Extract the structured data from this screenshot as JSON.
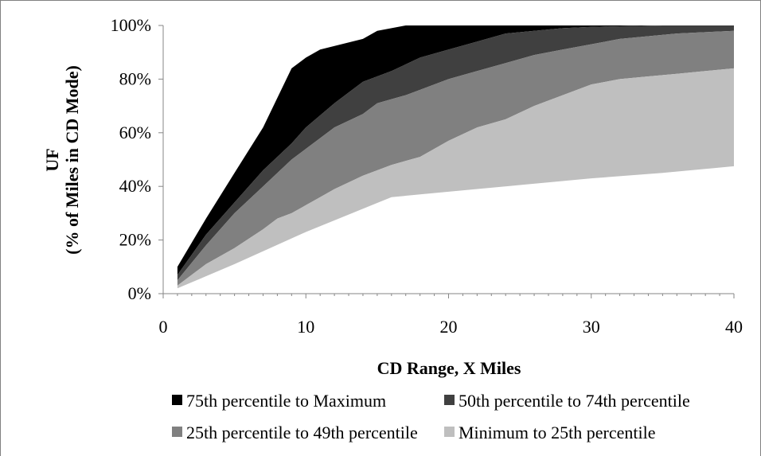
{
  "chart_data": {
    "type": "area",
    "stacked": true,
    "title": "",
    "xlabel": "CD Range, X Miles",
    "ylabel_lines": [
      "UF",
      "(% of Miles in CD Mode)"
    ],
    "xlim": [
      0,
      40
    ],
    "ylim": [
      0,
      100
    ],
    "x_ticks": [
      0,
      10,
      20,
      30,
      40
    ],
    "x_tick_labels": [
      "0",
      "10",
      "20",
      "30",
      "40"
    ],
    "y_ticks": [
      0,
      20,
      40,
      60,
      80,
      100
    ],
    "y_tick_labels": [
      "0%",
      "20%",
      "40%",
      "60%",
      "80%",
      "100%"
    ],
    "grid": false,
    "legend_position": "bottom",
    "boundaries": [
      {
        "name": "Minimum",
        "points": [
          [
            1,
            2
          ],
          [
            5,
            11
          ],
          [
            10,
            23
          ],
          [
            16,
            36
          ],
          [
            20,
            38
          ],
          [
            25,
            40.5
          ],
          [
            30,
            43
          ],
          [
            35,
            45
          ],
          [
            40,
            47.5
          ]
        ]
      },
      {
        "name": "25th percentile",
        "points": [
          [
            1,
            3
          ],
          [
            2,
            7
          ],
          [
            3,
            11
          ],
          [
            5,
            17
          ],
          [
            7,
            24
          ],
          [
            8,
            28
          ],
          [
            9,
            30
          ],
          [
            10,
            33
          ],
          [
            11,
            36
          ],
          [
            12,
            39
          ],
          [
            14,
            44
          ],
          [
            16,
            48
          ],
          [
            18,
            51
          ],
          [
            20,
            57
          ],
          [
            22,
            62
          ],
          [
            24,
            65
          ],
          [
            26,
            70
          ],
          [
            28,
            74
          ],
          [
            30,
            78
          ],
          [
            32,
            80
          ],
          [
            34,
            81
          ],
          [
            36,
            82
          ],
          [
            38,
            83
          ],
          [
            40,
            84
          ]
        ]
      },
      {
        "name": "50th percentile",
        "points": [
          [
            1,
            5
          ],
          [
            3,
            18
          ],
          [
            5,
            30
          ],
          [
            7,
            40
          ],
          [
            9,
            50
          ],
          [
            10,
            54
          ],
          [
            12,
            62
          ],
          [
            14,
            67
          ],
          [
            15,
            71
          ],
          [
            17,
            74
          ],
          [
            18,
            76
          ],
          [
            20,
            80
          ],
          [
            22,
            83
          ],
          [
            24,
            86
          ],
          [
            26,
            89
          ],
          [
            28,
            91
          ],
          [
            30,
            93
          ],
          [
            32,
            95
          ],
          [
            34,
            96
          ],
          [
            36,
            97
          ],
          [
            38,
            97.5
          ],
          [
            40,
            98
          ]
        ]
      },
      {
        "name": "75th percentile",
        "points": [
          [
            1,
            7
          ],
          [
            3,
            22
          ],
          [
            5,
            34
          ],
          [
            7,
            46
          ],
          [
            9,
            56
          ],
          [
            10,
            62
          ],
          [
            12,
            71
          ],
          [
            14,
            79
          ],
          [
            16,
            83
          ],
          [
            18,
            88
          ],
          [
            20,
            91
          ],
          [
            22,
            94
          ],
          [
            24,
            97
          ],
          [
            26,
            98
          ],
          [
            28,
            99
          ],
          [
            30,
            99.5
          ],
          [
            32,
            99.7
          ],
          [
            35,
            100
          ],
          [
            40,
            100
          ]
        ]
      },
      {
        "name": "Maximum",
        "points": [
          [
            1,
            10
          ],
          [
            3,
            28
          ],
          [
            5,
            45
          ],
          [
            7,
            62
          ],
          [
            9,
            84
          ],
          [
            10,
            88
          ],
          [
            11,
            91
          ],
          [
            14,
            95
          ],
          [
            15,
            98
          ],
          [
            17,
            100
          ],
          [
            40,
            100
          ]
        ]
      }
    ],
    "series": [
      {
        "name": "75th percentile to Maximum",
        "lower": 3,
        "upper": 4,
        "color": "#000000"
      },
      {
        "name": "50th percentile to 74th percentile",
        "lower": 2,
        "upper": 3,
        "color": "#404040"
      },
      {
        "name": "25th percentile to 49th percentile",
        "lower": 1,
        "upper": 2,
        "color": "#808080"
      },
      {
        "name": "Minimum to 25th percentile",
        "lower": 0,
        "upper": 1,
        "color": "#bfbfbf"
      }
    ]
  }
}
